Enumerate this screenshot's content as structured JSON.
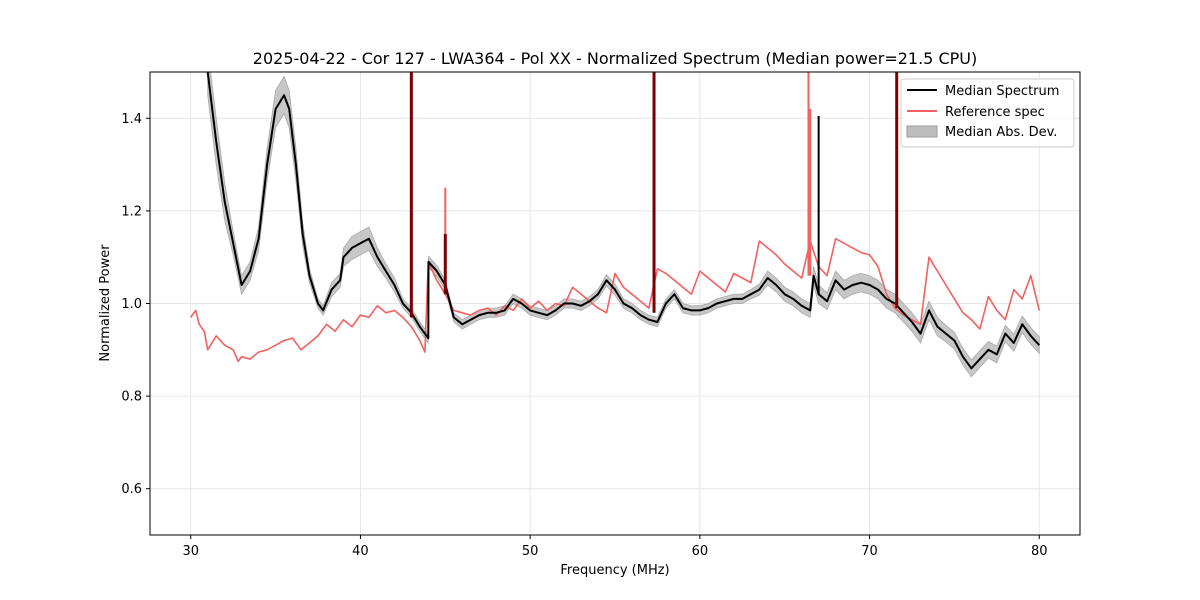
{
  "chart_data": {
    "type": "line",
    "title": "2025-04-22 - Cor 127 - LWA364 - Pol XX - Normalized Spectrum (Median power=21.5 CPU)",
    "xlabel": "Frequency (MHz)",
    "ylabel": "Normalized Power",
    "xlim": [
      27.6,
      82.4
    ],
    "ylim": [
      0.5,
      1.5
    ],
    "xticks": [
      30,
      40,
      50,
      60,
      70,
      80
    ],
    "yticks": [
      0.6,
      0.8,
      1.0,
      1.2,
      1.4
    ],
    "xtick_labels": [
      "30",
      "40",
      "50",
      "60",
      "70",
      "80"
    ],
    "ytick_labels": [
      "0.6",
      "0.8",
      "1.0",
      "1.2",
      "1.4"
    ],
    "grid": true,
    "legend_position": "top-right",
    "legend": [
      "Median Spectrum",
      "Reference spec",
      "Median Abs. Dev."
    ],
    "colors": {
      "median": "#000000",
      "reference": "#f46060",
      "mad_fill": "#bdbdbd",
      "spike": "#7a0000"
    },
    "series": [
      {
        "name": "Median Spectrum",
        "x": [
          31.0,
          31.5,
          32.0,
          32.5,
          33.0,
          33.5,
          34.0,
          34.5,
          35.0,
          35.5,
          35.8,
          36.2,
          36.6,
          37.0,
          37.5,
          37.8,
          38.3,
          38.8,
          39.0,
          39.5,
          40.0,
          40.5,
          41.0,
          41.5,
          42.0,
          42.5,
          43.0,
          43.5,
          44.0,
          44.01,
          44.5,
          45.0,
          45.5,
          46.0,
          46.5,
          47.0,
          47.5,
          48.0,
          48.5,
          49.0,
          49.5,
          50.0,
          50.5,
          51.0,
          51.5,
          52.0,
          52.5,
          53.0,
          53.5,
          54.0,
          54.5,
          55.0,
          55.5,
          56.0,
          56.5,
          57.0,
          57.5,
          58.0,
          58.5,
          59.0,
          59.5,
          60.0,
          60.5,
          61.0,
          61.5,
          62.0,
          62.5,
          63.0,
          63.5,
          64.0,
          64.5,
          65.0,
          65.5,
          66.0,
          66.5,
          66.7,
          67.0,
          67.5,
          68.0,
          68.5,
          69.0,
          69.5,
          70.0,
          70.5,
          71.0,
          71.5,
          72.0,
          72.5,
          73.0,
          73.5,
          74.0,
          74.5,
          75.0,
          75.5,
          76.0,
          76.5,
          77.0,
          77.5,
          78.0,
          78.5,
          79.0,
          79.5,
          80.0
        ],
        "y": [
          1.5,
          1.35,
          1.22,
          1.13,
          1.04,
          1.07,
          1.14,
          1.3,
          1.42,
          1.45,
          1.42,
          1.3,
          1.15,
          1.06,
          1.0,
          0.985,
          1.03,
          1.05,
          1.1,
          1.12,
          1.13,
          1.14,
          1.1,
          1.07,
          1.04,
          1.0,
          0.98,
          0.95,
          0.925,
          1.09,
          1.07,
          1.04,
          0.97,
          0.955,
          0.965,
          0.975,
          0.98,
          0.98,
          0.985,
          1.01,
          1.0,
          0.985,
          0.98,
          0.975,
          0.985,
          1.0,
          1.0,
          0.995,
          1.005,
          1.02,
          1.05,
          1.03,
          1.0,
          0.99,
          0.975,
          0.965,
          0.96,
          1.0,
          1.02,
          0.99,
          0.985,
          0.985,
          0.99,
          1.0,
          1.005,
          1.01,
          1.01,
          1.02,
          1.03,
          1.055,
          1.04,
          1.02,
          1.01,
          0.995,
          0.985,
          1.06,
          1.02,
          1.005,
          1.05,
          1.03,
          1.04,
          1.045,
          1.04,
          1.03,
          1.01,
          1.0,
          0.98,
          0.96,
          0.935,
          0.985,
          0.95,
          0.935,
          0.92,
          0.885,
          0.86,
          0.88,
          0.9,
          0.89,
          0.935,
          0.915,
          0.955,
          0.93,
          0.91
        ],
        "mad": [
          0.05,
          0.05,
          0.04,
          0.025,
          0.02,
          0.02,
          0.025,
          0.035,
          0.04,
          0.04,
          0.04,
          0.035,
          0.025,
          0.015,
          0.01,
          0.01,
          0.015,
          0.015,
          0.02,
          0.025,
          0.025,
          0.025,
          0.02,
          0.015,
          0.015,
          0.01,
          0.01,
          0.01,
          0.01,
          0.012,
          0.012,
          0.01,
          0.01,
          0.01,
          0.01,
          0.01,
          0.01,
          0.01,
          0.01,
          0.01,
          0.01,
          0.01,
          0.01,
          0.01,
          0.01,
          0.01,
          0.01,
          0.01,
          0.01,
          0.01,
          0.012,
          0.012,
          0.01,
          0.01,
          0.01,
          0.01,
          0.01,
          0.01,
          0.01,
          0.01,
          0.01,
          0.01,
          0.01,
          0.01,
          0.01,
          0.01,
          0.01,
          0.01,
          0.012,
          0.015,
          0.015,
          0.015,
          0.015,
          0.015,
          0.015,
          0.02,
          0.02,
          0.018,
          0.02,
          0.02,
          0.02,
          0.02,
          0.02,
          0.02,
          0.02,
          0.02,
          0.02,
          0.02,
          0.02,
          0.02,
          0.02,
          0.018,
          0.018,
          0.018,
          0.018,
          0.018,
          0.018,
          0.018,
          0.018,
          0.018,
          0.018,
          0.018,
          0.018
        ]
      },
      {
        "name": "Reference spec",
        "x": [
          30.0,
          30.3,
          30.5,
          30.8,
          31.0,
          31.5,
          32.0,
          32.5,
          32.8,
          33.0,
          33.5,
          34.0,
          34.5,
          35.0,
          35.5,
          36.0,
          36.5,
          37.0,
          37.5,
          38.0,
          38.5,
          39.0,
          39.5,
          40.0,
          40.5,
          41.0,
          41.5,
          42.0,
          42.5,
          43.0,
          43.5,
          43.8,
          44.0,
          44.5,
          45.0,
          45.5,
          46.0,
          46.5,
          47.0,
          47.5,
          48.0,
          48.5,
          49.0,
          49.5,
          50.0,
          50.5,
          51.0,
          51.5,
          52.0,
          52.5,
          53.0,
          53.5,
          54.0,
          54.5,
          55.0,
          55.5,
          56.0,
          56.5,
          57.0,
          57.5,
          58.0,
          58.5,
          59.0,
          59.5,
          60.0,
          60.5,
          61.0,
          61.5,
          62.0,
          62.5,
          63.0,
          63.5,
          64.0,
          64.5,
          65.0,
          65.5,
          66.0,
          66.5,
          67.0,
          67.5,
          68.0,
          68.5,
          69.0,
          69.5,
          70.0,
          70.5,
          71.0,
          71.5,
          72.0,
          72.5,
          73.0,
          73.5,
          74.0,
          74.5,
          75.0,
          75.5,
          76.0,
          76.5,
          77.0,
          77.5,
          78.0,
          78.5,
          79.0,
          79.5,
          80.0
        ],
        "y": [
          0.97,
          0.985,
          0.955,
          0.94,
          0.9,
          0.93,
          0.91,
          0.9,
          0.875,
          0.885,
          0.88,
          0.895,
          0.9,
          0.91,
          0.92,
          0.925,
          0.9,
          0.915,
          0.93,
          0.955,
          0.94,
          0.965,
          0.95,
          0.975,
          0.97,
          0.995,
          0.98,
          0.985,
          0.97,
          0.95,
          0.92,
          0.895,
          1.09,
          1.05,
          1.02,
          0.985,
          0.98,
          0.975,
          0.985,
          0.99,
          0.975,
          0.995,
          0.985,
          1.01,
          0.99,
          1.005,
          0.985,
          1.0,
          0.995,
          1.035,
          1.02,
          1.005,
          0.99,
          0.98,
          1.065,
          1.035,
          1.02,
          1.005,
          0.99,
          1.075,
          1.065,
          1.05,
          1.035,
          1.02,
          1.07,
          1.055,
          1.04,
          1.025,
          1.065,
          1.055,
          1.045,
          1.135,
          1.12,
          1.105,
          1.085,
          1.07,
          1.055,
          1.135,
          1.08,
          1.06,
          1.14,
          1.13,
          1.12,
          1.11,
          1.105,
          1.08,
          1.02,
          0.99,
          0.975,
          0.965,
          0.955,
          1.1,
          1.07,
          1.04,
          1.01,
          0.98,
          0.965,
          0.945,
          1.015,
          0.985,
          0.965,
          1.03,
          1.01,
          1.06,
          0.985
        ]
      }
    ],
    "spikes": [
      {
        "x": 43.0,
        "y_top": 1.5,
        "y_bottom": 0.97
      },
      {
        "x": 45.0,
        "y_top": 1.15,
        "y_bottom": 1.02
      },
      {
        "x": 57.3,
        "y_top": 1.5,
        "y_bottom": 0.98
      },
      {
        "x": 71.6,
        "y_top": 1.5,
        "y_bottom": 0.99
      }
    ],
    "ref_spikes": [
      {
        "x": 45.0,
        "y_top": 1.25,
        "y_bottom": 1.02
      },
      {
        "x": 66.4,
        "y_top": 1.5,
        "y_bottom": 1.06
      },
      {
        "x": 66.5,
        "y_top": 1.42,
        "y_bottom": 1.06
      }
    ],
    "median_spikes": [
      {
        "x": 67.0,
        "y_top": 1.405,
        "y_bottom": 1.02
      }
    ]
  }
}
